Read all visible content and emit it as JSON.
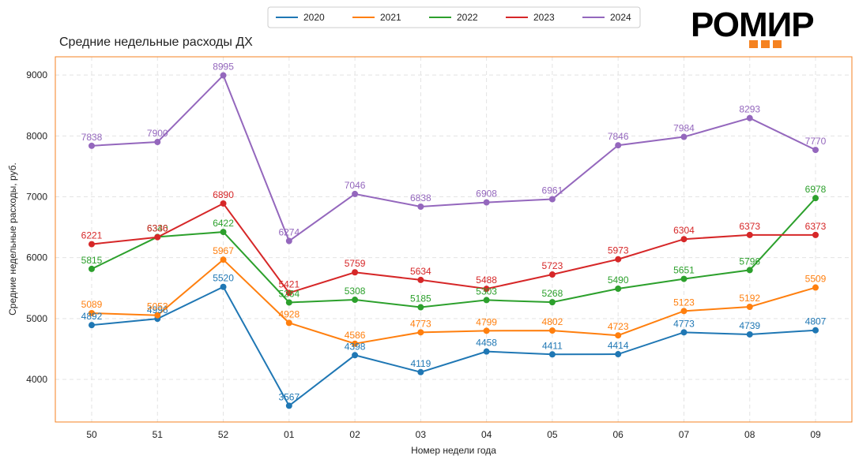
{
  "chart_data": {
    "type": "line",
    "title": "Средние недельные расходы ДХ",
    "xlabel": "Номер недели года",
    "ylabel": "Средние недельные расходы, руб.",
    "categories": [
      "50",
      "51",
      "52",
      "01",
      "02",
      "03",
      "04",
      "05",
      "06",
      "07",
      "08",
      "09"
    ],
    "yticks": [
      4000,
      5000,
      6000,
      7000,
      8000,
      9000
    ],
    "ylim": [
      3300,
      9300
    ],
    "grid": true,
    "legend_position": "top-center",
    "series": [
      {
        "name": "2020",
        "color": "#1f77b4",
        "values": [
          4892,
          4996,
          5520,
          3567,
          4398,
          4119,
          4458,
          4411,
          4414,
          4773,
          4739,
          4807
        ]
      },
      {
        "name": "2021",
        "color": "#ff7f0e",
        "values": [
          5089,
          5053,
          5967,
          4928,
          4586,
          4773,
          4799,
          4802,
          4723,
          5123,
          5192,
          5509
        ]
      },
      {
        "name": "2022",
        "color": "#2ca02c",
        "values": [
          5815,
          6340,
          6422,
          5264,
          5308,
          5185,
          5303,
          5268,
          5490,
          5651,
          5796,
          6978
        ]
      },
      {
        "name": "2023",
        "color": "#d62728",
        "values": [
          6221,
          6336,
          6890,
          5421,
          5759,
          5634,
          5488,
          5723,
          5973,
          6304,
          6373,
          6373
        ]
      },
      {
        "name": "2024",
        "color": "#9467bd",
        "values": [
          7838,
          7900,
          8995,
          6274,
          7046,
          6838,
          6908,
          6961,
          7846,
          7984,
          8293,
          7770
        ]
      }
    ]
  },
  "logo": {
    "text": "РОМИР",
    "accent_color": "#f58220"
  }
}
